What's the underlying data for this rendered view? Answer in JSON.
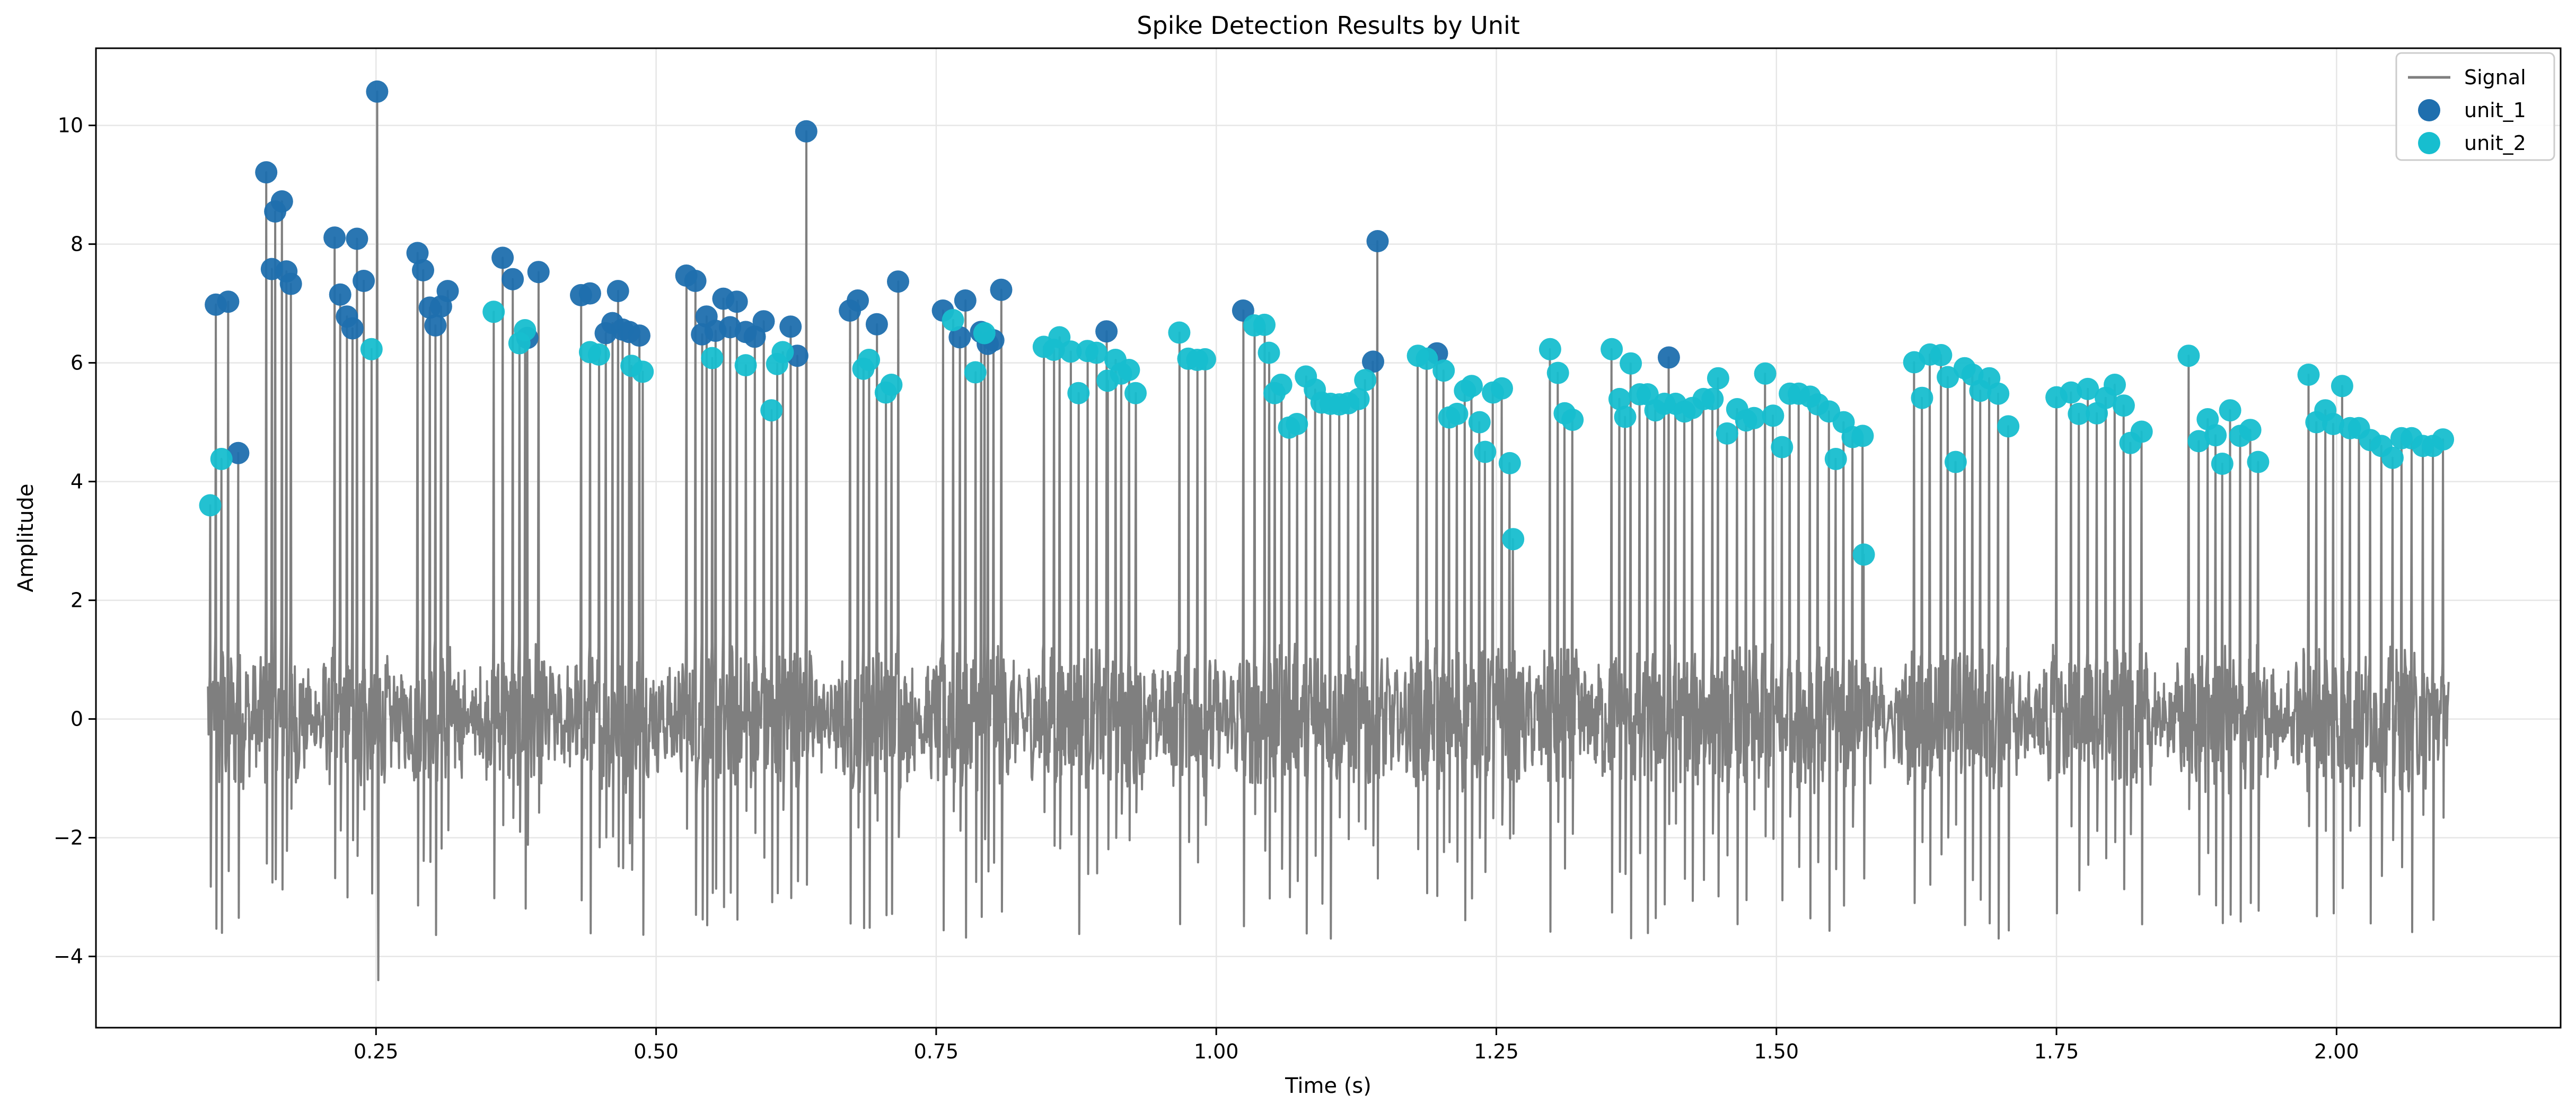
{
  "chart_data": {
    "type": "scatter",
    "title": "Spike Detection Results by Unit",
    "xlabel": "Time (s)",
    "ylabel": "Amplitude",
    "xlim": [
      -0.0,
      2.2
    ],
    "ylim": [
      -5.2,
      11.3
    ],
    "x_ticks": [
      0.25,
      0.5,
      0.75,
      1.0,
      1.25,
      1.5,
      1.75,
      2.0
    ],
    "x_tick_labels": [
      "0.25",
      "0.50",
      "0.75",
      "1.00",
      "1.25",
      "1.50",
      "1.75",
      "2.00"
    ],
    "y_ticks": [
      -4,
      -2,
      0,
      2,
      4,
      6,
      8,
      10
    ],
    "y_tick_labels": [
      "−4",
      "−2",
      "0",
      "2",
      "4",
      "6",
      "8",
      "10"
    ],
    "grid": true,
    "legend_position": "top-right",
    "signal": {
      "name": "Signal",
      "color": "#7f7f7f",
      "x_start": 0.1,
      "x_end": 2.1,
      "baseline_amplitude": 1.1,
      "min": -4.4,
      "max": 10.6
    },
    "series": [
      {
        "name": "unit_1",
        "color": "#1f6fae",
        "points": [
          [
            0.107,
            6.98
          ],
          [
            0.118,
            7.03
          ],
          [
            0.127,
            4.48
          ],
          [
            0.152,
            9.21
          ],
          [
            0.157,
            7.58
          ],
          [
            0.16,
            8.55
          ],
          [
            0.166,
            8.72
          ],
          [
            0.17,
            7.54
          ],
          [
            0.174,
            7.33
          ],
          [
            0.213,
            8.11
          ],
          [
            0.218,
            7.15
          ],
          [
            0.224,
            6.78
          ],
          [
            0.229,
            6.58
          ],
          [
            0.233,
            8.09
          ],
          [
            0.239,
            7.38
          ],
          [
            0.251,
            10.57
          ],
          [
            0.287,
            7.85
          ],
          [
            0.292,
            7.56
          ],
          [
            0.298,
            6.93
          ],
          [
            0.303,
            6.63
          ],
          [
            0.308,
            6.95
          ],
          [
            0.314,
            7.21
          ],
          [
            0.363,
            7.77
          ],
          [
            0.372,
            7.41
          ],
          [
            0.385,
            6.42
          ],
          [
            0.395,
            7.53
          ],
          [
            0.433,
            7.14
          ],
          [
            0.441,
            7.17
          ],
          [
            0.455,
            6.5
          ],
          [
            0.461,
            6.67
          ],
          [
            0.466,
            7.21
          ],
          [
            0.47,
            6.56
          ],
          [
            0.476,
            6.52
          ],
          [
            0.485,
            6.46
          ],
          [
            0.527,
            7.47
          ],
          [
            0.535,
            7.38
          ],
          [
            0.541,
            6.48
          ],
          [
            0.545,
            6.78
          ],
          [
            0.553,
            6.54
          ],
          [
            0.56,
            7.08
          ],
          [
            0.566,
            6.6
          ],
          [
            0.572,
            7.03
          ],
          [
            0.58,
            6.52
          ],
          [
            0.588,
            6.44
          ],
          [
            0.596,
            6.7
          ],
          [
            0.62,
            6.61
          ],
          [
            0.626,
            6.12
          ],
          [
            0.634,
            9.9
          ],
          [
            0.673,
            6.88
          ],
          [
            0.68,
            7.05
          ],
          [
            0.697,
            6.65
          ],
          [
            0.716,
            7.37
          ],
          [
            0.756,
            6.88
          ],
          [
            0.771,
            6.43
          ],
          [
            0.776,
            7.05
          ],
          [
            0.79,
            6.52
          ],
          [
            0.796,
            6.32
          ],
          [
            0.801,
            6.38
          ],
          [
            0.808,
            7.23
          ],
          [
            0.902,
            6.53
          ],
          [
            1.024,
            6.88
          ],
          [
            1.14,
            6.02
          ],
          [
            1.144,
            8.05
          ],
          [
            1.197,
            6.16
          ],
          [
            1.404,
            6.09
          ]
        ]
      },
      {
        "name": "unit_2",
        "color": "#17becf",
        "points": [
          [
            0.102,
            3.6
          ],
          [
            0.112,
            4.38
          ],
          [
            0.246,
            6.23
          ],
          [
            0.355,
            6.86
          ],
          [
            0.378,
            6.33
          ],
          [
            0.383,
            6.55
          ],
          [
            0.441,
            6.18
          ],
          [
            0.449,
            6.14
          ],
          [
            0.478,
            5.95
          ],
          [
            0.488,
            5.85
          ],
          [
            0.55,
            6.08
          ],
          [
            0.58,
            5.96
          ],
          [
            0.603,
            5.2
          ],
          [
            0.608,
            5.98
          ],
          [
            0.613,
            6.18
          ],
          [
            0.685,
            5.9
          ],
          [
            0.69,
            6.05
          ],
          [
            0.705,
            5.5
          ],
          [
            0.71,
            5.63
          ],
          [
            0.765,
            6.72
          ],
          [
            0.785,
            5.84
          ],
          [
            0.793,
            6.5
          ],
          [
            0.846,
            6.27
          ],
          [
            0.855,
            6.22
          ],
          [
            0.86,
            6.43
          ],
          [
            0.87,
            6.19
          ],
          [
            0.877,
            5.49
          ],
          [
            0.885,
            6.2
          ],
          [
            0.893,
            6.17
          ],
          [
            0.903,
            5.7
          ],
          [
            0.91,
            6.05
          ],
          [
            0.915,
            5.82
          ],
          [
            0.922,
            5.88
          ],
          [
            0.928,
            5.49
          ],
          [
            0.967,
            6.51
          ],
          [
            0.975,
            6.07
          ],
          [
            0.983,
            6.05
          ],
          [
            0.99,
            6.06
          ],
          [
            1.034,
            6.63
          ],
          [
            1.043,
            6.64
          ],
          [
            1.047,
            6.17
          ],
          [
            1.052,
            5.49
          ],
          [
            1.058,
            5.63
          ],
          [
            1.065,
            4.91
          ],
          [
            1.072,
            4.97
          ],
          [
            1.08,
            5.77
          ],
          [
            1.088,
            5.55
          ],
          [
            1.094,
            5.33
          ],
          [
            1.102,
            5.31
          ],
          [
            1.11,
            5.3
          ],
          [
            1.118,
            5.32
          ],
          [
            1.127,
            5.39
          ],
          [
            1.133,
            5.71
          ],
          [
            1.18,
            6.12
          ],
          [
            1.188,
            6.07
          ],
          [
            1.203,
            5.87
          ],
          [
            1.208,
            5.08
          ],
          [
            1.215,
            5.14
          ],
          [
            1.222,
            5.53
          ],
          [
            1.228,
            5.61
          ],
          [
            1.235,
            5.0
          ],
          [
            1.24,
            4.5
          ],
          [
            1.247,
            5.5
          ],
          [
            1.255,
            5.57
          ],
          [
            1.262,
            4.31
          ],
          [
            1.265,
            3.03
          ],
          [
            1.298,
            6.23
          ],
          [
            1.305,
            5.83
          ],
          [
            1.311,
            5.15
          ],
          [
            1.318,
            5.04
          ],
          [
            1.353,
            6.23
          ],
          [
            1.36,
            5.39
          ],
          [
            1.365,
            5.09
          ],
          [
            1.37,
            5.99
          ],
          [
            1.378,
            5.47
          ],
          [
            1.385,
            5.47
          ],
          [
            1.392,
            5.2
          ],
          [
            1.4,
            5.31
          ],
          [
            1.41,
            5.31
          ],
          [
            1.418,
            5.18
          ],
          [
            1.425,
            5.24
          ],
          [
            1.435,
            5.39
          ],
          [
            1.443,
            5.39
          ],
          [
            1.448,
            5.74
          ],
          [
            1.456,
            4.81
          ],
          [
            1.465,
            5.22
          ],
          [
            1.473,
            5.03
          ],
          [
            1.48,
            5.07
          ],
          [
            1.49,
            5.82
          ],
          [
            1.497,
            5.11
          ],
          [
            1.505,
            4.58
          ],
          [
            1.512,
            5.48
          ],
          [
            1.52,
            5.48
          ],
          [
            1.53,
            5.43
          ],
          [
            1.537,
            5.3
          ],
          [
            1.547,
            5.18
          ],
          [
            1.553,
            4.38
          ],
          [
            1.56,
            5.0
          ],
          [
            1.568,
            4.75
          ],
          [
            1.577,
            4.77
          ],
          [
            1.578,
            2.77
          ],
          [
            1.623,
            6.01
          ],
          [
            1.63,
            5.41
          ],
          [
            1.637,
            6.14
          ],
          [
            1.647,
            6.13
          ],
          [
            1.653,
            5.76
          ],
          [
            1.66,
            4.33
          ],
          [
            1.668,
            5.91
          ],
          [
            1.675,
            5.8
          ],
          [
            1.682,
            5.53
          ],
          [
            1.69,
            5.74
          ],
          [
            1.698,
            5.48
          ],
          [
            1.707,
            4.93
          ],
          [
            1.75,
            5.42
          ],
          [
            1.763,
            5.5
          ],
          [
            1.77,
            5.14
          ],
          [
            1.778,
            5.56
          ],
          [
            1.786,
            5.15
          ],
          [
            1.794,
            5.41
          ],
          [
            1.802,
            5.63
          ],
          [
            1.81,
            5.28
          ],
          [
            1.816,
            4.65
          ],
          [
            1.826,
            4.84
          ],
          [
            1.868,
            6.12
          ],
          [
            1.877,
            4.68
          ],
          [
            1.885,
            5.05
          ],
          [
            1.892,
            4.78
          ],
          [
            1.898,
            4.3
          ],
          [
            1.905,
            5.2
          ],
          [
            1.914,
            4.77
          ],
          [
            1.923,
            4.87
          ],
          [
            1.93,
            4.33
          ],
          [
            1.975,
            5.8
          ],
          [
            1.982,
            5.0
          ],
          [
            1.99,
            5.2
          ],
          [
            1.997,
            4.97
          ],
          [
            2.005,
            5.61
          ],
          [
            2.012,
            4.9
          ],
          [
            2.02,
            4.9
          ],
          [
            2.03,
            4.7
          ],
          [
            2.04,
            4.6
          ],
          [
            2.05,
            4.4
          ],
          [
            2.058,
            4.73
          ],
          [
            2.067,
            4.73
          ],
          [
            2.077,
            4.6
          ],
          [
            2.086,
            4.6
          ],
          [
            2.095,
            4.71
          ]
        ]
      }
    ],
    "legend": [
      {
        "label": "Signal",
        "kind": "line",
        "color": "#7f7f7f"
      },
      {
        "label": "unit_1",
        "kind": "marker",
        "color": "#1f6fae"
      },
      {
        "label": "unit_2",
        "kind": "marker",
        "color": "#17becf"
      }
    ]
  }
}
